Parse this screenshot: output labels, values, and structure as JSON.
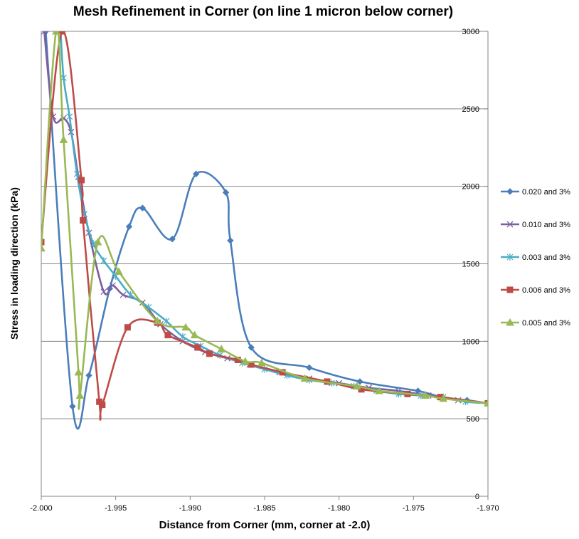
{
  "chart_data": {
    "type": "line",
    "title": "Mesh Refinement in Corner (on line 1 micron below corner)",
    "xlabel": "Distance from Corner (mm, corner at -2.0)",
    "ylabel": "Stress in loading direction (kPa)",
    "xlim": [
      -2.0,
      -1.97
    ],
    "ylim": [
      0,
      3000
    ],
    "x_ticks": [
      "-2.000",
      "-1.995",
      "-1.990",
      "-1.985",
      "-1.980",
      "-1.975",
      "-1.970"
    ],
    "y_ticks": [
      "0",
      "500",
      "1000",
      "1500",
      "2000",
      "2500",
      "3000"
    ],
    "grid": "horizontal",
    "legend_position": "right",
    "series": [
      {
        "name": "0.020 and 3%",
        "color": "#4a7ebb",
        "marker": "diamond",
        "x": [
          -1.9997,
          -1.9979,
          -1.9968,
          -1.9954,
          -1.9941,
          -1.9932,
          -1.9912,
          -1.9896,
          -1.9876,
          -1.9873,
          -1.9859,
          -1.982,
          -1.9786,
          -1.9747,
          -1.9731,
          -1.9714,
          -1.97
        ],
        "y": [
          3000,
          580,
          780,
          1340,
          1740,
          1860,
          1660,
          2080,
          1960,
          1650,
          960,
          830,
          740,
          680,
          640,
          620,
          600
        ]
      },
      {
        "name": "0.010 and 3%",
        "color": "#7d5fa0",
        "marker": "x",
        "x": [
          -1.9998,
          -1.9992,
          -1.9985,
          -1.998,
          -1.9975,
          -1.9968,
          -1.9958,
          -1.9952,
          -1.9945,
          -1.9932,
          -1.992,
          -1.9905,
          -1.989,
          -1.9875,
          -1.986,
          -1.984,
          -1.982,
          -1.98,
          -1.978,
          -1.976,
          -1.974,
          -1.972,
          -1.97
        ],
        "y": [
          3000,
          2450,
          2440,
          2350,
          2060,
          1700,
          1320,
          1360,
          1300,
          1250,
          1110,
          1000,
          930,
          890,
          850,
          800,
          760,
          730,
          700,
          680,
          650,
          620,
          600
        ]
      },
      {
        "name": "0.003 and 3%",
        "color": "#4bacc6",
        "marker": "asterisk",
        "x": [
          -1.9987,
          -1.9985,
          -1.9981,
          -1.9976,
          -1.9971,
          -1.9965,
          -1.9958,
          -1.995,
          -1.994,
          -1.9928,
          -1.9916,
          -1.9905,
          -1.9893,
          -1.988,
          -1.9865,
          -1.985,
          -1.9835,
          -1.982,
          -1.9805,
          -1.979,
          -1.9775,
          -1.976,
          -1.9745,
          -1.973,
          -1.9715,
          -1.97
        ],
        "y": [
          3000,
          2700,
          2450,
          2080,
          1820,
          1630,
          1520,
          1420,
          1300,
          1220,
          1130,
          1030,
          970,
          910,
          860,
          820,
          780,
          750,
          730,
          710,
          680,
          660,
          650,
          640,
          610,
          600
        ]
      },
      {
        "name": "0.006 and 3%",
        "color": "#be4b48",
        "marker": "square",
        "x": [
          -2.0,
          -1.9986,
          -1.9973,
          -1.9972,
          -1.9961,
          -1.9959,
          -1.9942,
          -1.9922,
          -1.9915,
          -1.9895,
          -1.9887,
          -1.9868,
          -1.9859,
          -1.9838,
          -1.9808,
          -1.9785,
          -1.9754,
          -1.9732,
          -1.97
        ],
        "y": [
          1640,
          3000,
          2040,
          1780,
          610,
          590,
          1090,
          1120,
          1040,
          960,
          920,
          880,
          850,
          800,
          740,
          690,
          660,
          640,
          600
        ]
      },
      {
        "name": "0.005 and 3%",
        "color": "#98b954",
        "marker": "triangle",
        "x": [
          -2.0,
          -1.999,
          -1.9985,
          -1.9975,
          -1.9974,
          -1.9962,
          -1.9948,
          -1.9922,
          -1.9903,
          -1.9897,
          -1.9879,
          -1.9863,
          -1.9852,
          -1.9823,
          -1.9788,
          -1.9773,
          -1.9742,
          -1.973,
          -1.97
        ],
        "y": [
          1600,
          3000,
          2300,
          800,
          650,
          1640,
          1450,
          1130,
          1090,
          1040,
          950,
          870,
          860,
          760,
          710,
          680,
          650,
          630,
          600
        ]
      }
    ]
  }
}
